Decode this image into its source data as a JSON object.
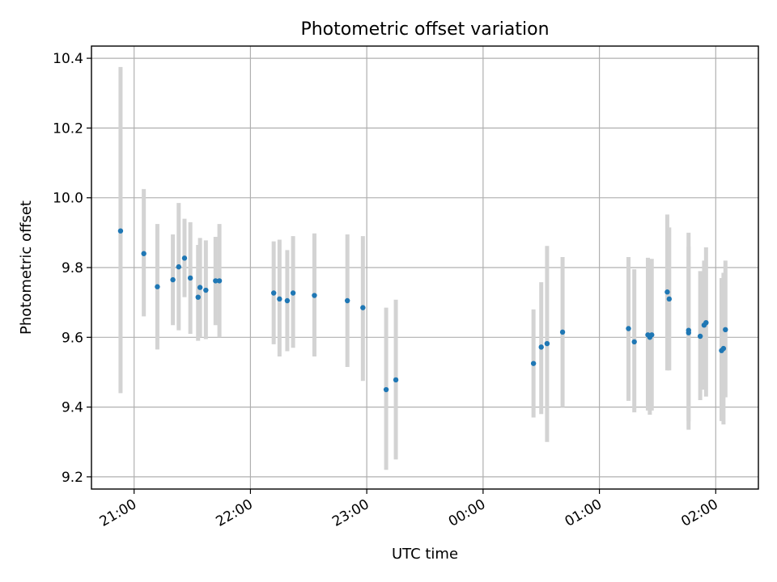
{
  "chart_data": {
    "type": "scatter",
    "title": "Photometric offset variation",
    "xlabel": "UTC time",
    "ylabel": "Photometric offset",
    "grid": true,
    "x_axis": {
      "kind": "time",
      "unit": "hours UTC",
      "tick_labels": [
        "21:00",
        "22:00",
        "23:00",
        "00:00",
        "01:00",
        "02:00"
      ],
      "xlim": [
        "20:38",
        "02:22"
      ]
    },
    "ylim": [
      9.165,
      10.435
    ],
    "y_ticks": [
      "9.2",
      "9.4",
      "9.6",
      "9.8",
      "10.0",
      "10.2",
      "10.4"
    ],
    "colors": {
      "points": "#1f77b4",
      "error_bars": "#d3d3d3"
    },
    "series": [
      {
        "points": [
          {
            "x": "20:53",
            "y": 9.905,
            "yerr": [
              9.44,
              10.375
            ]
          },
          {
            "x": "21:05",
            "y": 9.84,
            "yerr": [
              9.66,
              10.025
            ]
          },
          {
            "x": "21:12",
            "y": 9.745,
            "yerr": [
              9.565,
              9.925
            ]
          },
          {
            "x": "21:20",
            "y": 9.765,
            "yerr": [
              9.635,
              9.895
            ]
          },
          {
            "x": "21:23",
            "y": 9.802,
            "yerr": [
              9.62,
              9.985
            ]
          },
          {
            "x": "21:26",
            "y": 9.827,
            "yerr": [
              9.715,
              9.94
            ]
          },
          {
            "x": "21:29",
            "y": 9.77,
            "yerr": [
              9.61,
              9.93
            ]
          },
          {
            "x": "21:33",
            "y": 9.715,
            "yerr": [
              9.59,
              9.865
            ]
          },
          {
            "x": "21:34",
            "y": 9.743,
            "yerr": [
              9.6,
              9.885
            ]
          },
          {
            "x": "21:37",
            "y": 9.735,
            "yerr": [
              9.595,
              9.878
            ]
          },
          {
            "x": "21:42",
            "y": 9.762,
            "yerr": [
              9.635,
              9.888
            ]
          },
          {
            "x": "21:44",
            "y": 9.762,
            "yerr": [
              9.6,
              9.925
            ]
          },
          {
            "x": "22:12",
            "y": 9.727,
            "yerr": [
              9.58,
              9.875
            ]
          },
          {
            "x": "22:15",
            "y": 9.71,
            "yerr": [
              9.545,
              9.88
            ]
          },
          {
            "x": "22:19",
            "y": 9.705,
            "yerr": [
              9.56,
              9.85
            ]
          },
          {
            "x": "22:22",
            "y": 9.727,
            "yerr": [
              9.57,
              9.89
            ]
          },
          {
            "x": "22:33",
            "y": 9.72,
            "yerr": [
              9.545,
              9.898
            ]
          },
          {
            "x": "22:50",
            "y": 9.705,
            "yerr": [
              9.515,
              9.895
            ]
          },
          {
            "x": "22:58",
            "y": 9.685,
            "yerr": [
              9.475,
              9.89
            ]
          },
          {
            "x": "23:10",
            "y": 9.45,
            "yerr": [
              9.22,
              9.685
            ]
          },
          {
            "x": "23:15",
            "y": 9.478,
            "yerr": [
              9.25,
              9.708
            ]
          },
          {
            "x": "00:26",
            "y": 9.525,
            "yerr": [
              9.37,
              9.68
            ]
          },
          {
            "x": "00:30",
            "y": 9.572,
            "yerr": [
              9.38,
              9.758
            ]
          },
          {
            "x": "00:33",
            "y": 9.582,
            "yerr": [
              9.3,
              9.862
            ]
          },
          {
            "x": "00:41",
            "y": 9.615,
            "yerr": [
              9.4,
              9.83
            ]
          },
          {
            "x": "01:15",
            "y": 9.625,
            "yerr": [
              9.418,
              9.83
            ]
          },
          {
            "x": "01:18",
            "y": 9.587,
            "yerr": [
              9.385,
              9.795
            ]
          },
          {
            "x": "01:25",
            "y": 9.607,
            "yerr": [
              9.39,
              9.828
            ]
          },
          {
            "x": "01:26",
            "y": 9.6,
            "yerr": [
              9.378,
              9.822
            ]
          },
          {
            "x": "01:27",
            "y": 9.607,
            "yerr": [
              9.39,
              9.825
            ]
          },
          {
            "x": "01:35",
            "y": 9.73,
            "yerr": [
              9.505,
              9.952
            ]
          },
          {
            "x": "01:36",
            "y": 9.71,
            "yerr": [
              9.505,
              9.915
            ]
          },
          {
            "x": "01:46",
            "y": 9.62,
            "yerr": [
              9.335,
              9.9
            ]
          },
          {
            "x": "01:46",
            "y": 9.613,
            "yerr": [
              9.36,
              9.86
            ]
          },
          {
            "x": "01:52",
            "y": 9.603,
            "yerr": [
              9.42,
              9.79
            ]
          },
          {
            "x": "01:54",
            "y": 9.635,
            "yerr": [
              9.45,
              9.82
            ]
          },
          {
            "x": "01:55",
            "y": 9.642,
            "yerr": [
              9.43,
              9.858
            ]
          },
          {
            "x": "02:03",
            "y": 9.562,
            "yerr": [
              9.36,
              9.77
            ]
          },
          {
            "x": "02:04",
            "y": 9.568,
            "yerr": [
              9.35,
              9.785
            ]
          },
          {
            "x": "02:05",
            "y": 9.622,
            "yerr": [
              9.428,
              9.82
            ]
          }
        ]
      }
    ]
  }
}
